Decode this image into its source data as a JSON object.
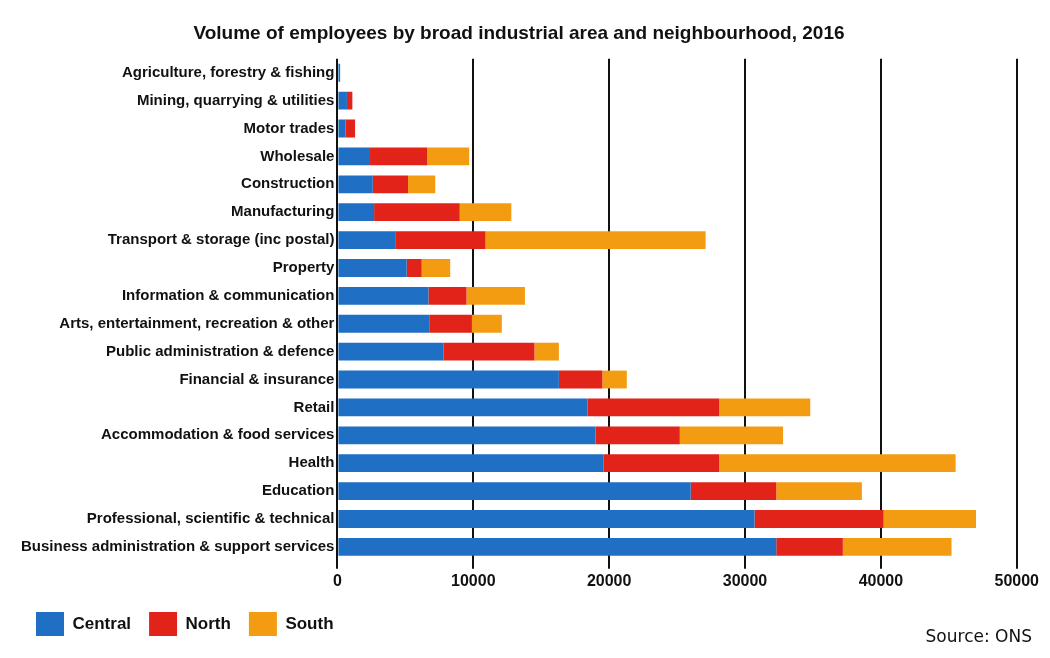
{
  "chart_data": {
    "type": "bar",
    "orientation": "horizontal",
    "stacked": true,
    "title": "Volume of employees by broad industrial area and neighbourhood, 2016",
    "categories": [
      "Agriculture, forestry & fishing",
      "Mining, quarrying & utilities",
      "Motor trades",
      "Wholesale",
      "Construction",
      "Manufacturing",
      "Transport & storage (inc postal)",
      "Property",
      "Information & communication",
      "Arts, entertainment, recreation & other",
      "Public administration & defence",
      "Financial & insurance",
      "Retail",
      "Accommodation & food services",
      "Health",
      "Education",
      "Professional, scientific & technical",
      "Business administration & support services"
    ],
    "series": [
      {
        "name": "Central",
        "color": "#1f6fc5",
        "values": [
          200,
          700,
          600,
          2400,
          2600,
          2700,
          4300,
          5100,
          6700,
          6800,
          7800,
          16300,
          18400,
          19000,
          19600,
          26000,
          30700,
          32300
        ]
      },
      {
        "name": "North",
        "color": "#e2231a",
        "values": [
          0,
          400,
          700,
          4200,
          2600,
          6300,
          6600,
          1100,
          2800,
          3100,
          6700,
          3200,
          9700,
          6200,
          8500,
          6300,
          9500,
          4900
        ]
      },
      {
        "name": "South",
        "color": "#f39c12",
        "values": [
          0,
          0,
          0,
          3100,
          2000,
          3800,
          16200,
          2100,
          4300,
          2200,
          1800,
          1800,
          6700,
          7600,
          17400,
          6300,
          6800,
          8000
        ]
      }
    ],
    "xlim": [
      0,
      50000
    ],
    "xticks": [
      0,
      10000,
      20000,
      30000,
      40000,
      50000
    ],
    "grid": "x",
    "legend": "bottom left",
    "annotations": [
      "Source: ONS"
    ]
  }
}
